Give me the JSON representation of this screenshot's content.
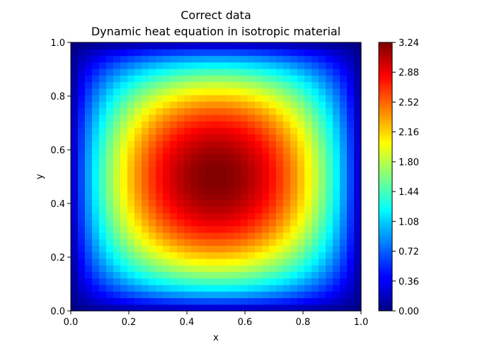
{
  "chart_data": {
    "type": "heatmap",
    "title": "Correct data\nDynamic heat equation in isotropic material",
    "title_lines": [
      "Correct data",
      "Dynamic heat equation in isotropic material"
    ],
    "xlabel": "x",
    "ylabel": "y",
    "xlim": [
      0.0,
      1.0
    ],
    "ylim": [
      0.0,
      1.0
    ],
    "x_ticks": [
      "0.0",
      "0.2",
      "0.4",
      "0.6",
      "0.8",
      "1.0"
    ],
    "y_ticks": [
      "0.0",
      "0.2",
      "0.4",
      "0.6",
      "0.8",
      "1.0"
    ],
    "colormap": "jet",
    "value_range": [
      0.0,
      3.24
    ],
    "peak": {
      "x": 0.5,
      "y": 0.5,
      "value": 3.24
    },
    "colorbar_ticks": [
      "0.00",
      "0.36",
      "0.72",
      "1.08",
      "1.44",
      "1.80",
      "2.16",
      "2.52",
      "2.88",
      "3.24"
    ],
    "grid": false
  }
}
